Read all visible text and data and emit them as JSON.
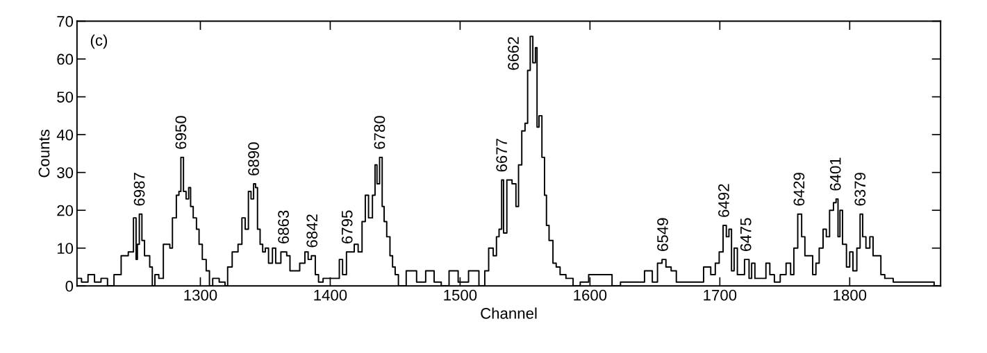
{
  "chart_data": {
    "type": "step",
    "xlabel": "Channel",
    "ylabel": "Counts",
    "annotations": [
      "(c)",
      {
        "text": "6987",
        "x": 1254,
        "y": 19
      },
      {
        "text": "6950",
        "x": 1286,
        "y": 34
      },
      {
        "text": "6890",
        "x": 1342,
        "y": 27
      },
      {
        "text": "6863",
        "x": 1365,
        "y": 9
      },
      {
        "text": "6842",
        "x": 1387,
        "y": 8
      },
      {
        "text": "6795",
        "x": 1414,
        "y": 9
      },
      {
        "text": "6780",
        "x": 1439,
        "y": 34
      },
      {
        "text": "6677",
        "x": 1533,
        "y": 28
      },
      {
        "text": "6662",
        "x": 1555,
        "y": 66
      },
      {
        "text": "6549",
        "x": 1657,
        "y": 7
      },
      {
        "text": "6492",
        "x": 1704,
        "y": 16
      },
      {
        "text": "6475",
        "x": 1721,
        "y": 7
      },
      {
        "text": "6429",
        "x": 1762,
        "y": 19
      },
      {
        "text": "6401",
        "x": 1790,
        "y": 23
      },
      {
        "text": "6379",
        "x": 1809,
        "y": 19
      }
    ],
    "x": [
      1206,
      1211,
      1216,
      1221,
      1226,
      1231,
      1236,
      1242,
      1247,
      1250,
      1251,
      1252,
      1254,
      1256,
      1258,
      1260,
      1262,
      1264,
      1266,
      1270,
      1273,
      1276,
      1277,
      1280,
      1283,
      1284,
      1286,
      1288,
      1290,
      1292,
      1293,
      1296,
      1298,
      1300,
      1303,
      1306,
      1308,
      1311,
      1318,
      1320,
      1322,
      1327,
      1331,
      1333,
      1336,
      1338,
      1340,
      1342,
      1343,
      1345,
      1347,
      1349,
      1351,
      1354,
      1357,
      1359,
      1365,
      1368,
      1370,
      1374,
      1379,
      1382,
      1384,
      1387,
      1390,
      1392,
      1397,
      1402,
      1406,
      1408,
      1411,
      1414,
      1417,
      1420,
      1423,
      1426,
      1428,
      1431,
      1434,
      1435,
      1437,
      1439,
      1441,
      1442,
      1445,
      1447,
      1449,
      1451,
      1454,
      1463,
      1470,
      1477,
      1483,
      1488,
      1495,
      1502,
      1511,
      1518,
      1520,
      1524,
      1527,
      1529,
      1531,
      1533,
      1534,
      1538,
      1542,
      1544,
      1546,
      1549,
      1551,
      1553,
      1555,
      1557,
      1559,
      1559.5,
      1562,
      1564,
      1566,
      1567,
      1570,
      1573,
      1575,
      1579,
      1584,
      1590,
      1595,
      1603,
      1614,
      1620,
      1627,
      1638,
      1646,
      1650,
      1654,
      1657,
      1660,
      1665,
      1668,
      1675,
      1684,
      1691,
      1695,
      1698,
      1701,
      1704,
      1706,
      1708,
      1710,
      1712,
      1715,
      1717,
      1721,
      1724,
      1725,
      1729,
      1734,
      1737,
      1740,
      1744,
      1749,
      1753,
      1756,
      1758,
      1762,
      1764,
      1767,
      1770,
      1773,
      1775,
      1778,
      1781,
      1783,
      1786,
      1789,
      1790,
      1792,
      1793,
      1796,
      1799,
      1801,
      1804,
      1807,
      1809,
      1811,
      1814,
      1817,
      1819,
      1823,
      1825,
      1829,
      1838,
      1849,
      1861,
      1869
    ],
    "values": [
      2,
      1,
      3,
      1,
      2,
      0,
      3,
      8,
      9,
      18,
      7,
      11,
      19,
      12,
      8,
      8,
      5,
      0,
      3,
      2,
      11,
      11,
      10,
      18,
      24,
      25,
      34,
      25,
      23,
      26,
      21,
      18,
      15,
      11,
      7,
      4,
      0,
      2,
      1,
      0,
      5,
      9,
      11,
      18,
      15,
      25,
      23,
      27,
      26,
      15,
      11,
      9,
      10,
      6,
      10,
      6,
      9,
      8,
      4,
      4,
      6,
      9,
      7,
      8,
      3,
      1,
      2,
      2,
      2,
      7,
      3,
      9,
      9,
      11,
      9,
      17,
      24,
      18,
      24,
      32,
      27,
      34,
      21,
      17,
      13,
      8,
      5,
      3,
      0,
      4,
      1,
      4,
      1,
      0,
      4,
      1,
      4,
      0,
      4,
      10,
      8,
      13,
      15,
      28,
      14,
      28,
      27,
      21,
      32,
      41,
      43,
      57,
      66,
      59,
      63,
      42,
      45,
      34,
      24,
      16,
      12,
      6,
      5,
      3,
      2,
      0,
      1,
      3,
      3,
      0,
      1,
      1,
      4,
      1,
      6,
      7,
      5,
      4,
      1,
      1,
      1,
      5,
      3,
      6,
      9,
      16,
      13,
      15,
      4,
      10,
      3,
      3,
      7,
      2,
      6,
      2,
      2,
      6,
      3,
      1,
      3,
      6,
      3,
      10,
      19,
      13,
      8,
      8,
      3,
      6,
      10,
      15,
      13,
      20,
      22,
      23,
      13,
      20,
      11,
      5,
      9,
      4,
      10,
      19,
      13,
      10,
      13,
      8,
      8,
      3,
      2,
      1,
      1,
      1,
      0
    ],
    "xlim": [
      1205,
      1870
    ],
    "ylim": [
      0,
      70
    ],
    "xticks": [
      1300,
      1400,
      1500,
      1600,
      1700,
      1800
    ],
    "yticks": [
      0,
      10,
      20,
      30,
      40,
      50,
      60,
      70
    ],
    "color": "#000000",
    "grid": false
  }
}
